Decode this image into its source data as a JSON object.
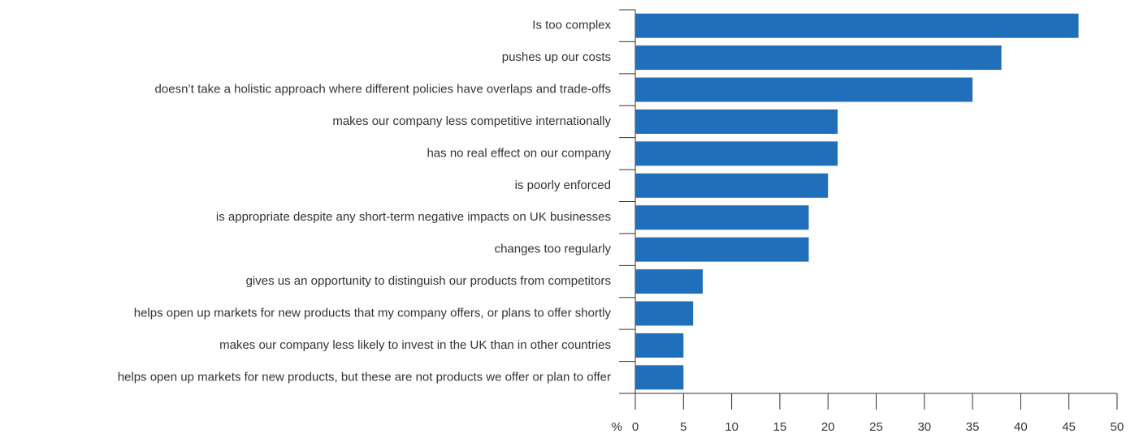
{
  "chart_data": {
    "type": "barh",
    "categories": [
      "Is too complex",
      "pushes up our costs",
      "doesn’t take a holistic approach where different policies have overlaps and trade-offs",
      "makes our company less competitive internationally",
      "has no real effect on our company",
      "is poorly enforced",
      "is appropriate despite any short-term negative impacts on UK businesses",
      "changes too regularly",
      "gives us an opportunity to distinguish our products from competitors",
      "helps open up markets for new products that my company offers, or plans to offer shortly",
      "makes our company less likely to invest in the UK than in other countries",
      "helps open up markets for new products, but these are not products we offer or plan to offer"
    ],
    "values": [
      46,
      38,
      35,
      21,
      21,
      20,
      18,
      18,
      7,
      6,
      5,
      5
    ],
    "color": "#1f6fba",
    "xlabel": "%",
    "xlim": [
      0,
      50
    ],
    "xticks": [
      0,
      5,
      10,
      15,
      20,
      25,
      30,
      35,
      40,
      45,
      50
    ],
    "grid": false
  }
}
